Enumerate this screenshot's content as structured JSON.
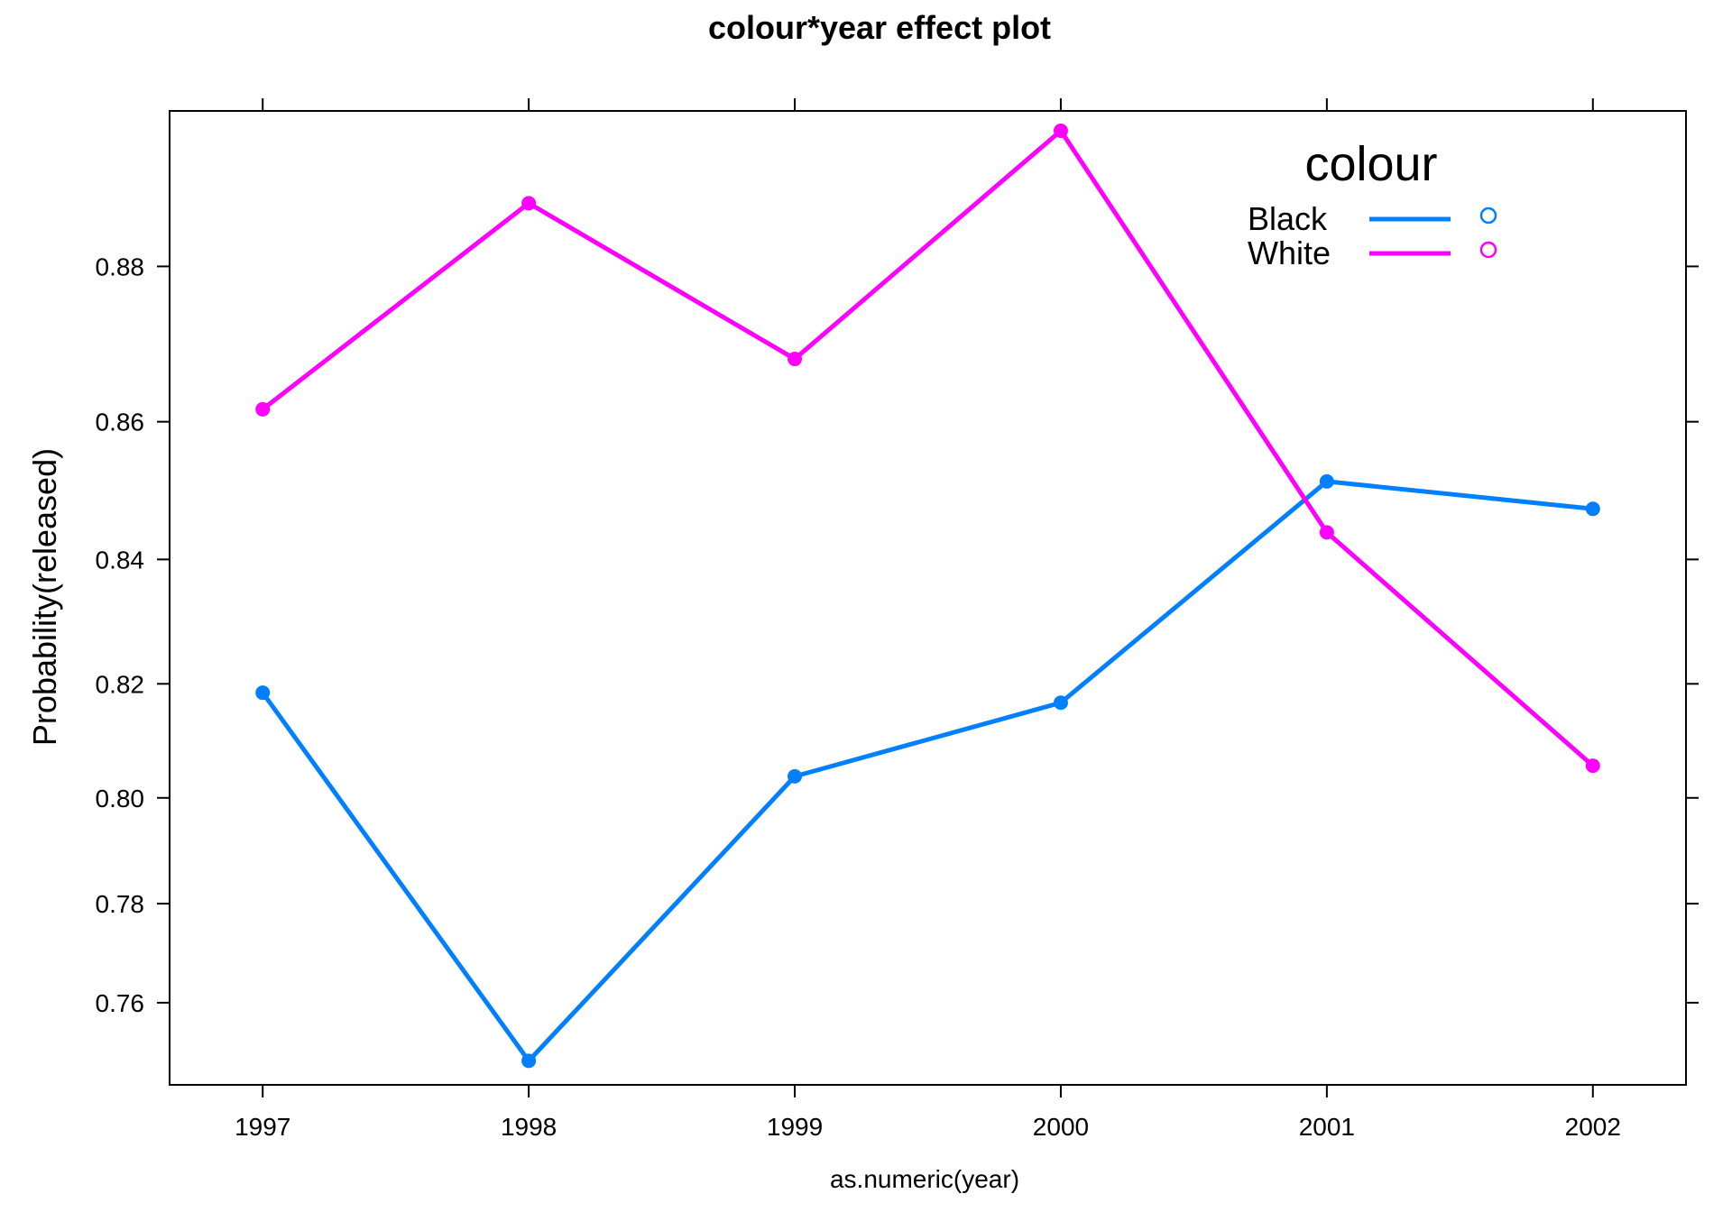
{
  "chart_data": {
    "type": "line",
    "title": "colour*year effect plot",
    "xlabel": "as.numeric(year)",
    "ylabel": "Probability(released)",
    "x": [
      1997,
      1998,
      1999,
      2000,
      2001,
      2002
    ],
    "xticks": [
      "1997",
      "1998",
      "1999",
      "2000",
      "2001",
      "2002"
    ],
    "yticks": [
      "0.76",
      "0.78",
      "0.80",
      "0.82",
      "0.84",
      "0.86",
      "0.88"
    ],
    "xlim": [
      1996.65,
      2002.35
    ],
    "series": [
      {
        "name": "Black",
        "color": "#0080ff",
        "values": [
          0.8185,
          0.7477,
          0.8039,
          0.8168,
          0.8516,
          0.8476
        ]
      },
      {
        "name": "White",
        "color": "#ff00ff",
        "values": [
          0.8617,
          0.8874,
          0.8684,
          0.8954,
          0.8441,
          0.8058
        ]
      }
    ],
    "legend": {
      "title": "colour",
      "placement": "top-right inside",
      "entries": [
        "Black",
        "White"
      ]
    },
    "y_scale": "logit",
    "grid": false
  }
}
